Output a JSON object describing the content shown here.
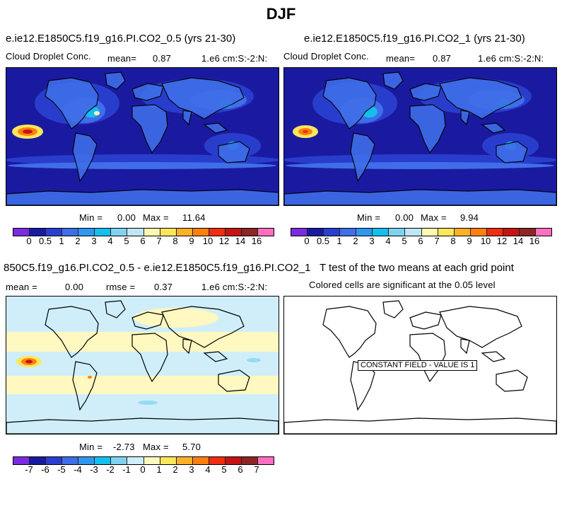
{
  "title": "DJF",
  "panels": [
    {
      "id": "top-left",
      "title": "e.ie12.E1850C5.f19_g16.PI.CO2_0.5 (yrs 21-30)",
      "variable": "Cloud Droplet Conc.",
      "stat_label": "mean=",
      "stat_value": "0.87",
      "units": "1.e6 cm:S:-2:N:",
      "min_label": "Min =",
      "min_value": "0.00",
      "max_label": "Max =",
      "max_value": "11.64"
    },
    {
      "id": "top-right",
      "title": "e.ie12.E1850C5.f19_g16.PI.CO2_1 (yrs 21-30)",
      "variable": "Cloud Droplet Conc.",
      "stat_label": "mean=",
      "stat_value": "0.87",
      "units": "1.e6 cm:S:-2:N:",
      "min_label": "Min =",
      "min_value": "0.00",
      "max_label": "Max =",
      "max_value": "9.94"
    },
    {
      "id": "bottom-left",
      "title": "850C5.f19_g16.PI.CO2_0.5 - e.ie12.E1850C5.f19_g16.PI.CO2_1",
      "stat_label": "mean =",
      "stat_value": "0.00",
      "rmse_label": "rmse =",
      "rmse_value": "0.37",
      "units": "1.e6 cm:S:-2:N:",
      "min_label": "Min =",
      "min_value": "-2.73",
      "max_label": "Max =",
      "max_value": "5.70"
    },
    {
      "id": "bottom-right",
      "title": "T test of the two means at each grid point",
      "subtitle": "Colored cells are significant at the 0.05 level",
      "note": "CONSTANT FIELD - VALUE IS 1"
    }
  ],
  "colorbars": {
    "field": {
      "labels": [
        "0",
        "0.5",
        "1",
        "2",
        "3",
        "4",
        "5",
        "6",
        "7",
        "8",
        "9",
        "10",
        "12",
        "14",
        "16"
      ],
      "colors": [
        "#7b2be2",
        "#1a1aa0",
        "#2a3fd0",
        "#3f6ee8",
        "#2f97f0",
        "#14bfef",
        "#7fd2f0",
        "#bfe6f5",
        "#fff8b0",
        "#fde65a",
        "#ffb028",
        "#ff7f10",
        "#ef2d10",
        "#c41414",
        "#8d2626",
        "#ff6fbf"
      ]
    },
    "diff": {
      "labels": [
        "-7",
        "-6",
        "-5",
        "-4",
        "-3",
        "-2",
        "-1",
        "0",
        "1",
        "2",
        "3",
        "4",
        "5",
        "6",
        "7"
      ],
      "colors": [
        "#7b2be2",
        "#1a1aa0",
        "#2a3fd0",
        "#3f6ee8",
        "#2f97f0",
        "#14bfef",
        "#7fd2f0",
        "#cfeefa",
        "#fff8c0",
        "#fde65a",
        "#ffb028",
        "#ff7f10",
        "#ef2d10",
        "#c41414",
        "#8d2626",
        "#ff6fbf"
      ]
    }
  },
  "chart_data": [
    {
      "type": "heatmap",
      "title": "e.ie12.E1850C5.f19_g16.PI.CO2_0.5 (yrs 21-30)",
      "variable": "Cloud Droplet Conc.",
      "units": "1.e6 cm:S:-2:N:",
      "mean": 0.87,
      "min": 0.0,
      "max": 11.64,
      "contour_levels": [
        0,
        0.5,
        1,
        2,
        3,
        4,
        5,
        6,
        7,
        8,
        9,
        10,
        12,
        14,
        16
      ]
    },
    {
      "type": "heatmap",
      "title": "e.ie12.E1850C5.f19_g16.PI.CO2_1 (yrs 21-30)",
      "variable": "Cloud Droplet Conc.",
      "units": "1.e6 cm:S:-2:N:",
      "mean": 0.87,
      "min": 0.0,
      "max": 9.94,
      "contour_levels": [
        0,
        0.5,
        1,
        2,
        3,
        4,
        5,
        6,
        7,
        8,
        9,
        10,
        12,
        14,
        16
      ]
    },
    {
      "type": "heatmap",
      "title": "850C5.f19_g16.PI.CO2_0.5 - e.ie12.E1850C5.f19_g16.PI.CO2_1",
      "units": "1.e6 cm:S:-2:N:",
      "mean": 0.0,
      "rmse": 0.37,
      "min": -2.73,
      "max": 5.7,
      "contour_levels": [
        -7,
        -6,
        -5,
        -4,
        -3,
        -2,
        -1,
        0,
        1,
        2,
        3,
        4,
        5,
        6,
        7
      ]
    },
    {
      "type": "heatmap",
      "title": "T test of the two means at each grid point",
      "subtitle": "Colored cells are significant at the 0.05 level",
      "note": "CONSTANT FIELD - VALUE IS 1"
    }
  ]
}
